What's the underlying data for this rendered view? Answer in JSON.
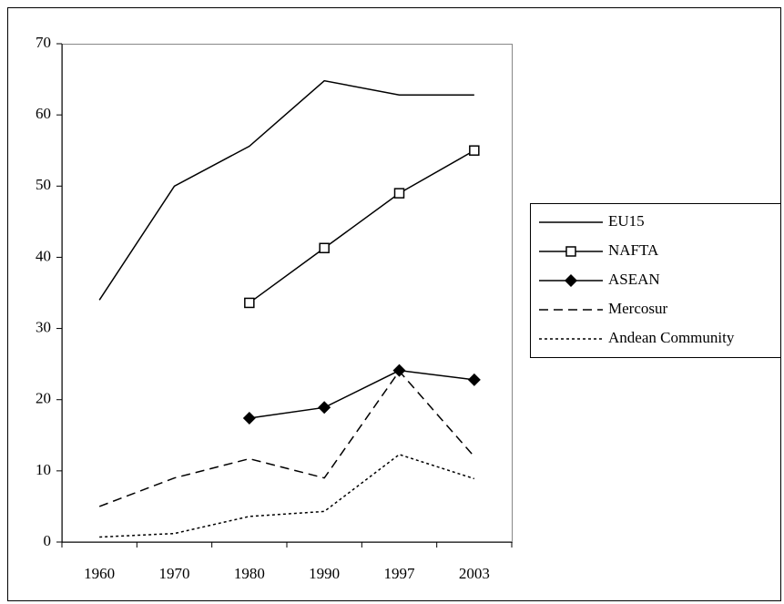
{
  "chart_data": {
    "type": "line",
    "categories": [
      "1960",
      "1970",
      "1980",
      "1990",
      "1997",
      "2003"
    ],
    "ylim": [
      0,
      70
    ],
    "yticks": [
      0,
      10,
      20,
      30,
      40,
      50,
      60,
      70
    ],
    "legend": "right",
    "series": [
      {
        "name": "EU15",
        "color": "#000000",
        "dash": "solid",
        "marker": "none",
        "values": [
          34,
          50,
          55.6,
          64.8,
          62.8,
          62.8
        ]
      },
      {
        "name": "NAFTA",
        "color": "#000000",
        "dash": "solid",
        "marker": "square",
        "values": [
          null,
          null,
          33.6,
          41.3,
          49.0,
          55.0
        ]
      },
      {
        "name": "ASEAN",
        "color": "#000000",
        "dash": "solid",
        "marker": "diamond",
        "values": [
          null,
          null,
          17.4,
          18.9,
          24.1,
          22.8
        ]
      },
      {
        "name": "Mercosur",
        "color": "#000000",
        "dash": "dashed",
        "marker": "none",
        "values": [
          5.0,
          9.0,
          11.7,
          9.0,
          24.0,
          12.0
        ]
      },
      {
        "name": "Andean Community",
        "color": "#000000",
        "dash": "dotted",
        "marker": "none",
        "values": [
          0.7,
          1.2,
          3.6,
          4.3,
          12.3,
          8.9
        ]
      }
    ]
  }
}
